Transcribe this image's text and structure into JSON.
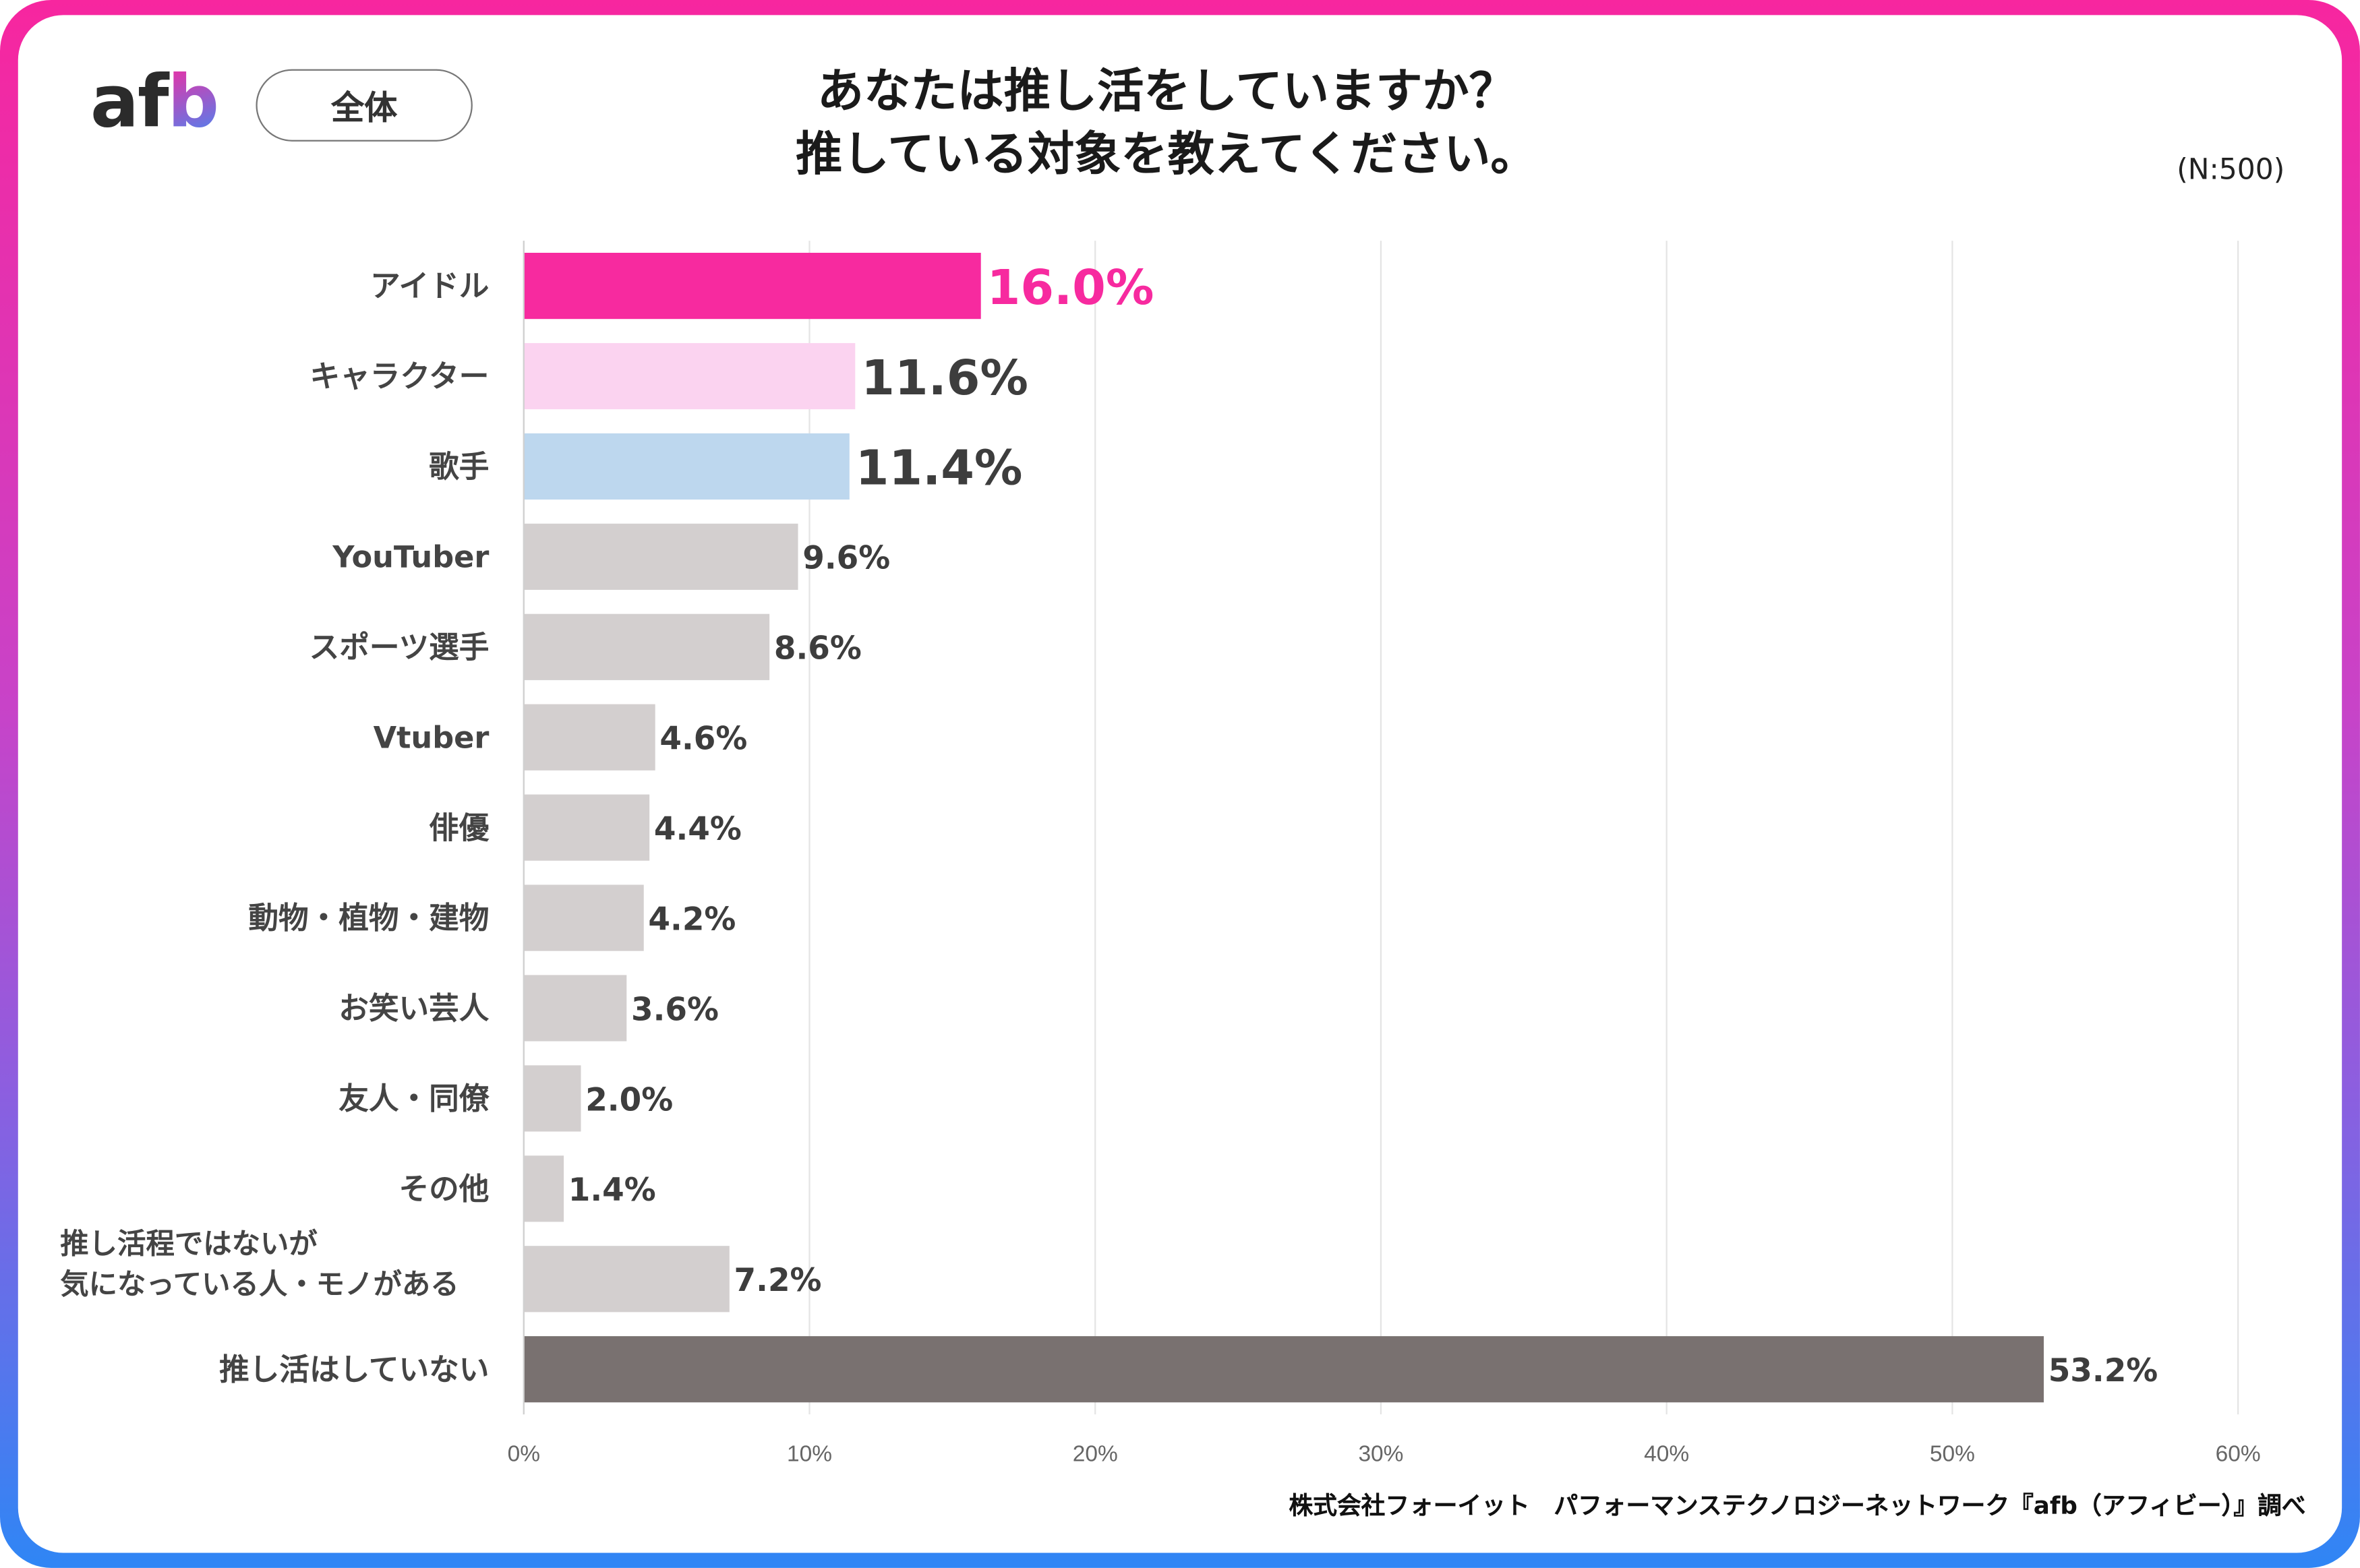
{
  "header": {
    "logo": "afb",
    "segment_button": "全体",
    "title_line1": "あなたは推し活をしていますか？",
    "title_line2": "推している対象を教えてください。",
    "sample_size": "(N:500)"
  },
  "footer": {
    "source": "株式会社フォーイット　パフォーマンステクノロジーネットワーク『afb（アフィビー）』調べ"
  },
  "chart_data": {
    "type": "bar",
    "orientation": "horizontal",
    "title": "あなたは推し活をしていますか？推している対象を教えてください。",
    "categories": [
      "アイドル",
      "キャラクター",
      "歌手",
      "YouTuber",
      "スポーツ選手",
      "Vtuber",
      "俳優",
      "動物・植物・建物",
      "お笑い芸人",
      "友人・同僚",
      "その他",
      "推し活程ではないが\n気になっている人・モノがある",
      "推し活はしていない"
    ],
    "values": [
      16.0,
      11.6,
      11.4,
      9.6,
      8.6,
      4.6,
      4.4,
      4.2,
      3.6,
      2.0,
      1.4,
      7.2,
      53.2
    ],
    "value_labels": [
      "16.0%",
      "11.6%",
      "11.4%",
      "9.6%",
      "8.6%",
      "4.6%",
      "4.4%",
      "4.2%",
      "3.6%",
      "2.0%",
      "1.4%",
      "7.2%",
      "53.2%"
    ],
    "bar_colors": [
      "#f72a9f",
      "#fbd3f0",
      "#bdd7ee",
      "#d3cfcf",
      "#d3cfcf",
      "#d3cfcf",
      "#d3cfcf",
      "#d3cfcf",
      "#d3cfcf",
      "#d3cfcf",
      "#d3cfcf",
      "#d3cfcf",
      "#797170"
    ],
    "xlim": [
      0,
      60
    ],
    "xticks": [
      "0%",
      "10%",
      "20%",
      "30%",
      "40%",
      "50%",
      "60%"
    ],
    "grid": true,
    "xlabel": "",
    "ylabel": ""
  }
}
